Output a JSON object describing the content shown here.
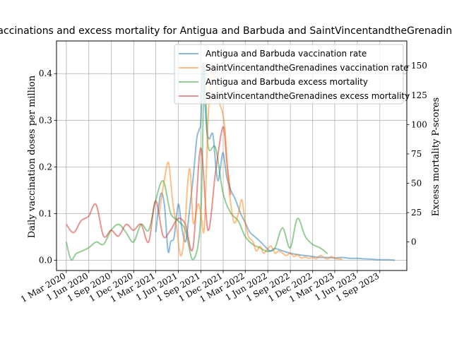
{
  "chart_data": {
    "type": "line",
    "title": "Vaccinations and excess mortality for Antigua and Barbuda and SaintVincentandtheGrenadines",
    "ylabel_left": "Daily vaccination doses per million",
    "ylabel_right": "Excess mortality P-scores",
    "x_ticks": [
      "1 Mar 2020",
      "1 Jun 2020",
      "1 Sep 2020",
      "1 Dec 2020",
      "1 Mar 2021",
      "1 Jun 2021",
      "1 Sep 2021",
      "1 Dec 2021",
      "1 Mar 2022",
      "1 Jun 2022",
      "1 Sep 2022",
      "1 Dec 2022",
      "1 Mar 2023",
      "1 Jun 2023",
      "1 Sep 2023"
    ],
    "y_left_ticks": [
      "0.0",
      "0.1",
      "0.2",
      "0.3",
      "0.4"
    ],
    "y_right_ticks": [
      "0",
      "25",
      "50",
      "75",
      "100",
      "125",
      "150"
    ],
    "xlim": [
      "2020-01-21",
      "2023-12-20"
    ],
    "ylim_left": [
      -0.022,
      0.47
    ],
    "ylim_right": [
      -24.3,
      171.2
    ],
    "grid": true,
    "legend_position": "upper right",
    "series": [
      {
        "name": "Antigua and Barbuda vaccination rate",
        "axis": "left",
        "color": "#1f77b4",
        "x": [
          "2021-03-01",
          "2021-03-20",
          "2021-04-05",
          "2021-04-20",
          "2021-05-01",
          "2021-05-15",
          "2021-06-01",
          "2021-06-15",
          "2021-07-01",
          "2021-07-15",
          "2021-08-01",
          "2021-08-15",
          "2021-08-25",
          "2021-09-01",
          "2021-09-08",
          "2021-09-15",
          "2021-09-25",
          "2021-10-05",
          "2021-10-20",
          "2021-11-01",
          "2021-11-10",
          "2021-11-20",
          "2021-12-01",
          "2021-12-15",
          "2022-01-01",
          "2022-01-20",
          "2022-02-10",
          "2022-03-01",
          "2022-03-20",
          "2022-04-10",
          "2022-05-01",
          "2022-05-20",
          "2022-06-10",
          "2022-07-01",
          "2022-08-01",
          "2022-09-01",
          "2022-10-01",
          "2022-11-01",
          "2022-12-01",
          "2023-01-01",
          "2023-02-01",
          "2023-03-01",
          "2023-04-01",
          "2023-05-01",
          "2023-06-01",
          "2023-07-01",
          "2023-08-01",
          "2023-09-01",
          "2023-10-01",
          "2023-11-01"
        ],
        "y": [
          0.06,
          0.14,
          0.12,
          0.02,
          0.04,
          0.05,
          0.12,
          0.07,
          0.04,
          0.1,
          0.18,
          0.26,
          0.28,
          0.3,
          0.42,
          0.36,
          0.28,
          0.26,
          0.27,
          0.2,
          0.17,
          0.2,
          0.23,
          0.18,
          0.15,
          0.13,
          0.1,
          0.08,
          0.06,
          0.05,
          0.04,
          0.03,
          0.02,
          0.025,
          0.02,
          0.015,
          0.012,
          0.01,
          0.008,
          0.006,
          0.006,
          0.005,
          0.006,
          0.004,
          0.004,
          0.003,
          0.002,
          0.001,
          0.001,
          0.0
        ]
      },
      {
        "name": "SaintVincentandtheGrenadines vaccination rate",
        "axis": "left",
        "color": "#ff7f0e",
        "x": [
          "2021-03-15",
          "2021-04-01",
          "2021-04-20",
          "2021-05-01",
          "2021-05-10",
          "2021-05-25",
          "2021-06-10",
          "2021-06-25",
          "2021-07-10",
          "2021-07-20",
          "2021-08-01",
          "2021-08-20",
          "2021-09-01",
          "2021-09-15",
          "2021-10-01",
          "2021-10-15",
          "2021-11-01",
          "2021-11-15",
          "2021-12-01",
          "2021-12-10",
          "2021-12-20",
          "2022-01-01",
          "2022-01-15",
          "2022-02-01",
          "2022-02-15",
          "2022-03-01",
          "2022-03-15",
          "2022-04-01",
          "2022-04-15",
          "2022-05-01",
          "2022-05-15",
          "2022-06-01",
          "2022-06-15",
          "2022-07-01",
          "2022-07-15",
          "2022-08-01",
          "2022-08-15",
          "2022-09-01",
          "2022-09-15",
          "2022-10-01",
          "2022-10-15",
          "2022-11-01",
          "2022-11-15",
          "2022-12-01",
          "2022-12-15",
          "2023-01-01",
          "2023-01-15",
          "2023-02-01",
          "2023-02-15",
          "2023-03-01",
          "2023-03-15",
          "2023-04-01"
        ],
        "y": [
          0.1,
          0.16,
          0.21,
          0.17,
          0.12,
          0.07,
          0.01,
          0.05,
          0.17,
          0.19,
          0.08,
          0.12,
          0.1,
          0.07,
          0.31,
          0.4,
          0.38,
          0.34,
          0.31,
          0.27,
          0.18,
          0.12,
          0.08,
          0.1,
          0.13,
          0.08,
          0.05,
          0.04,
          0.02,
          0.03,
          0.015,
          0.025,
          0.03,
          0.015,
          0.02,
          0.015,
          0.01,
          0.015,
          0.008,
          0.012,
          0.005,
          0.007,
          0.004,
          0.006,
          0.003,
          0.01,
          0.006,
          0.003,
          0.008,
          0.004,
          0.003,
          0.002
        ]
      },
      {
        "name": "Antigua and Barbuda excess mortality",
        "axis": "right",
        "color": "#2ca02c",
        "x": [
          "2020-03-01",
          "2020-03-20",
          "2020-04-10",
          "2020-05-01",
          "2020-05-31",
          "2020-07-01",
          "2020-07-31",
          "2020-08-31",
          "2020-10-01",
          "2020-10-31",
          "2020-11-30",
          "2020-12-31",
          "2021-01-31",
          "2021-02-28",
          "2021-03-31",
          "2021-04-30",
          "2021-05-31",
          "2021-06-30",
          "2021-07-31",
          "2021-08-31",
          "2021-09-15",
          "2021-09-30",
          "2021-10-31",
          "2021-11-30",
          "2021-12-31",
          "2022-01-31",
          "2022-02-28",
          "2022-03-31",
          "2022-04-30",
          "2022-05-31",
          "2022-06-30",
          "2022-07-31",
          "2022-08-31",
          "2022-09-30",
          "2022-10-31",
          "2022-11-30",
          "2022-12-31",
          "2023-01-31"
        ],
        "y": [
          0,
          -15,
          -10,
          -8,
          -5,
          0,
          -2,
          10,
          15,
          8,
          0,
          15,
          10,
          35,
          52,
          25,
          18,
          10,
          -15,
          20,
          148,
          82,
          80,
          42,
          25,
          18,
          5,
          -2,
          -5,
          -8,
          -5,
          12,
          -5,
          20,
          5,
          -2,
          -5,
          -10
        ]
      },
      {
        "name": "SaintVincentandtheGrenadines excess mortality",
        "axis": "right",
        "color": "#d62728",
        "x": [
          "2020-03-01",
          "2020-03-31",
          "2020-04-30",
          "2020-05-31",
          "2020-06-30",
          "2020-07-31",
          "2020-08-31",
          "2020-09-30",
          "2020-10-31",
          "2020-11-30",
          "2020-12-31",
          "2021-01-31",
          "2021-02-28",
          "2021-03-31",
          "2021-04-30",
          "2021-05-31",
          "2021-06-30",
          "2021-07-31",
          "2021-08-31",
          "2021-09-30",
          "2021-10-31",
          "2021-11-30",
          "2021-12-15",
          "2021-12-31"
        ],
        "y": [
          15,
          8,
          18,
          22,
          32,
          5,
          10,
          5,
          15,
          10,
          15,
          0,
          35,
          5,
          10,
          20,
          15,
          -5,
          80,
          10,
          60,
          98,
          70,
          40
        ]
      }
    ]
  }
}
